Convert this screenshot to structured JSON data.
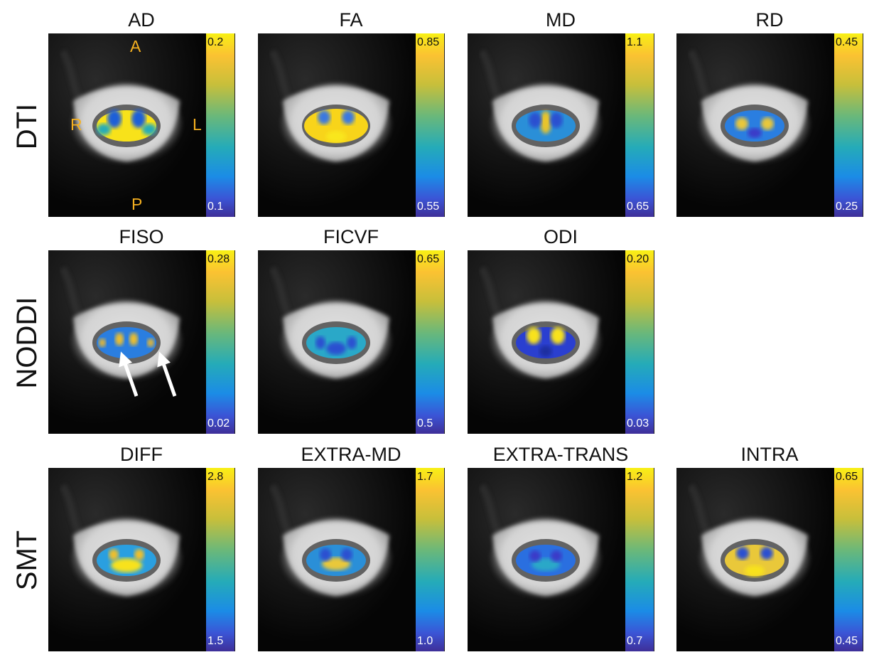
{
  "rows": [
    {
      "label": "DTI"
    },
    {
      "label": "NODDI"
    },
    {
      "label": "SMT"
    }
  ],
  "panels": [
    {
      "title": "AD",
      "max": "0.2",
      "min": "0.1",
      "pattern": "ad"
    },
    {
      "title": "FA",
      "max": "0.85",
      "min": "0.55",
      "pattern": "fa"
    },
    {
      "title": "MD",
      "max": "1.1",
      "min": "0.65",
      "pattern": "md"
    },
    {
      "title": "RD",
      "max": "0.45",
      "min": "0.25",
      "pattern": "rd"
    },
    {
      "title": "FISO",
      "max": "0.28",
      "min": "0.02",
      "pattern": "fiso"
    },
    {
      "title": "FICVF",
      "max": "0.65",
      "min": "0.5",
      "pattern": "ficvf"
    },
    {
      "title": "ODI",
      "max": "0.20",
      "min": "0.03",
      "pattern": "odi"
    },
    {
      "title": "DIFF",
      "max": "2.8",
      "min": "1.5",
      "pattern": "diff"
    },
    {
      "title": "EXTRA-MD",
      "max": "1.7",
      "min": "1.0",
      "pattern": "extramd"
    },
    {
      "title": "EXTRA-TRANS",
      "max": "1.2",
      "min": "0.7",
      "pattern": "extratrans"
    },
    {
      "title": "INTRA",
      "max": "0.65",
      "min": "0.45",
      "pattern": "intra"
    }
  ],
  "orientation": {
    "anterior": "A",
    "posterior": "P",
    "right": "R",
    "left": "L"
  },
  "colors": {
    "cmap_high": "#f8f014",
    "cmap_mid": "#25abb8",
    "cmap_low": "#3e2f98",
    "annotation": "#f5b020"
  }
}
